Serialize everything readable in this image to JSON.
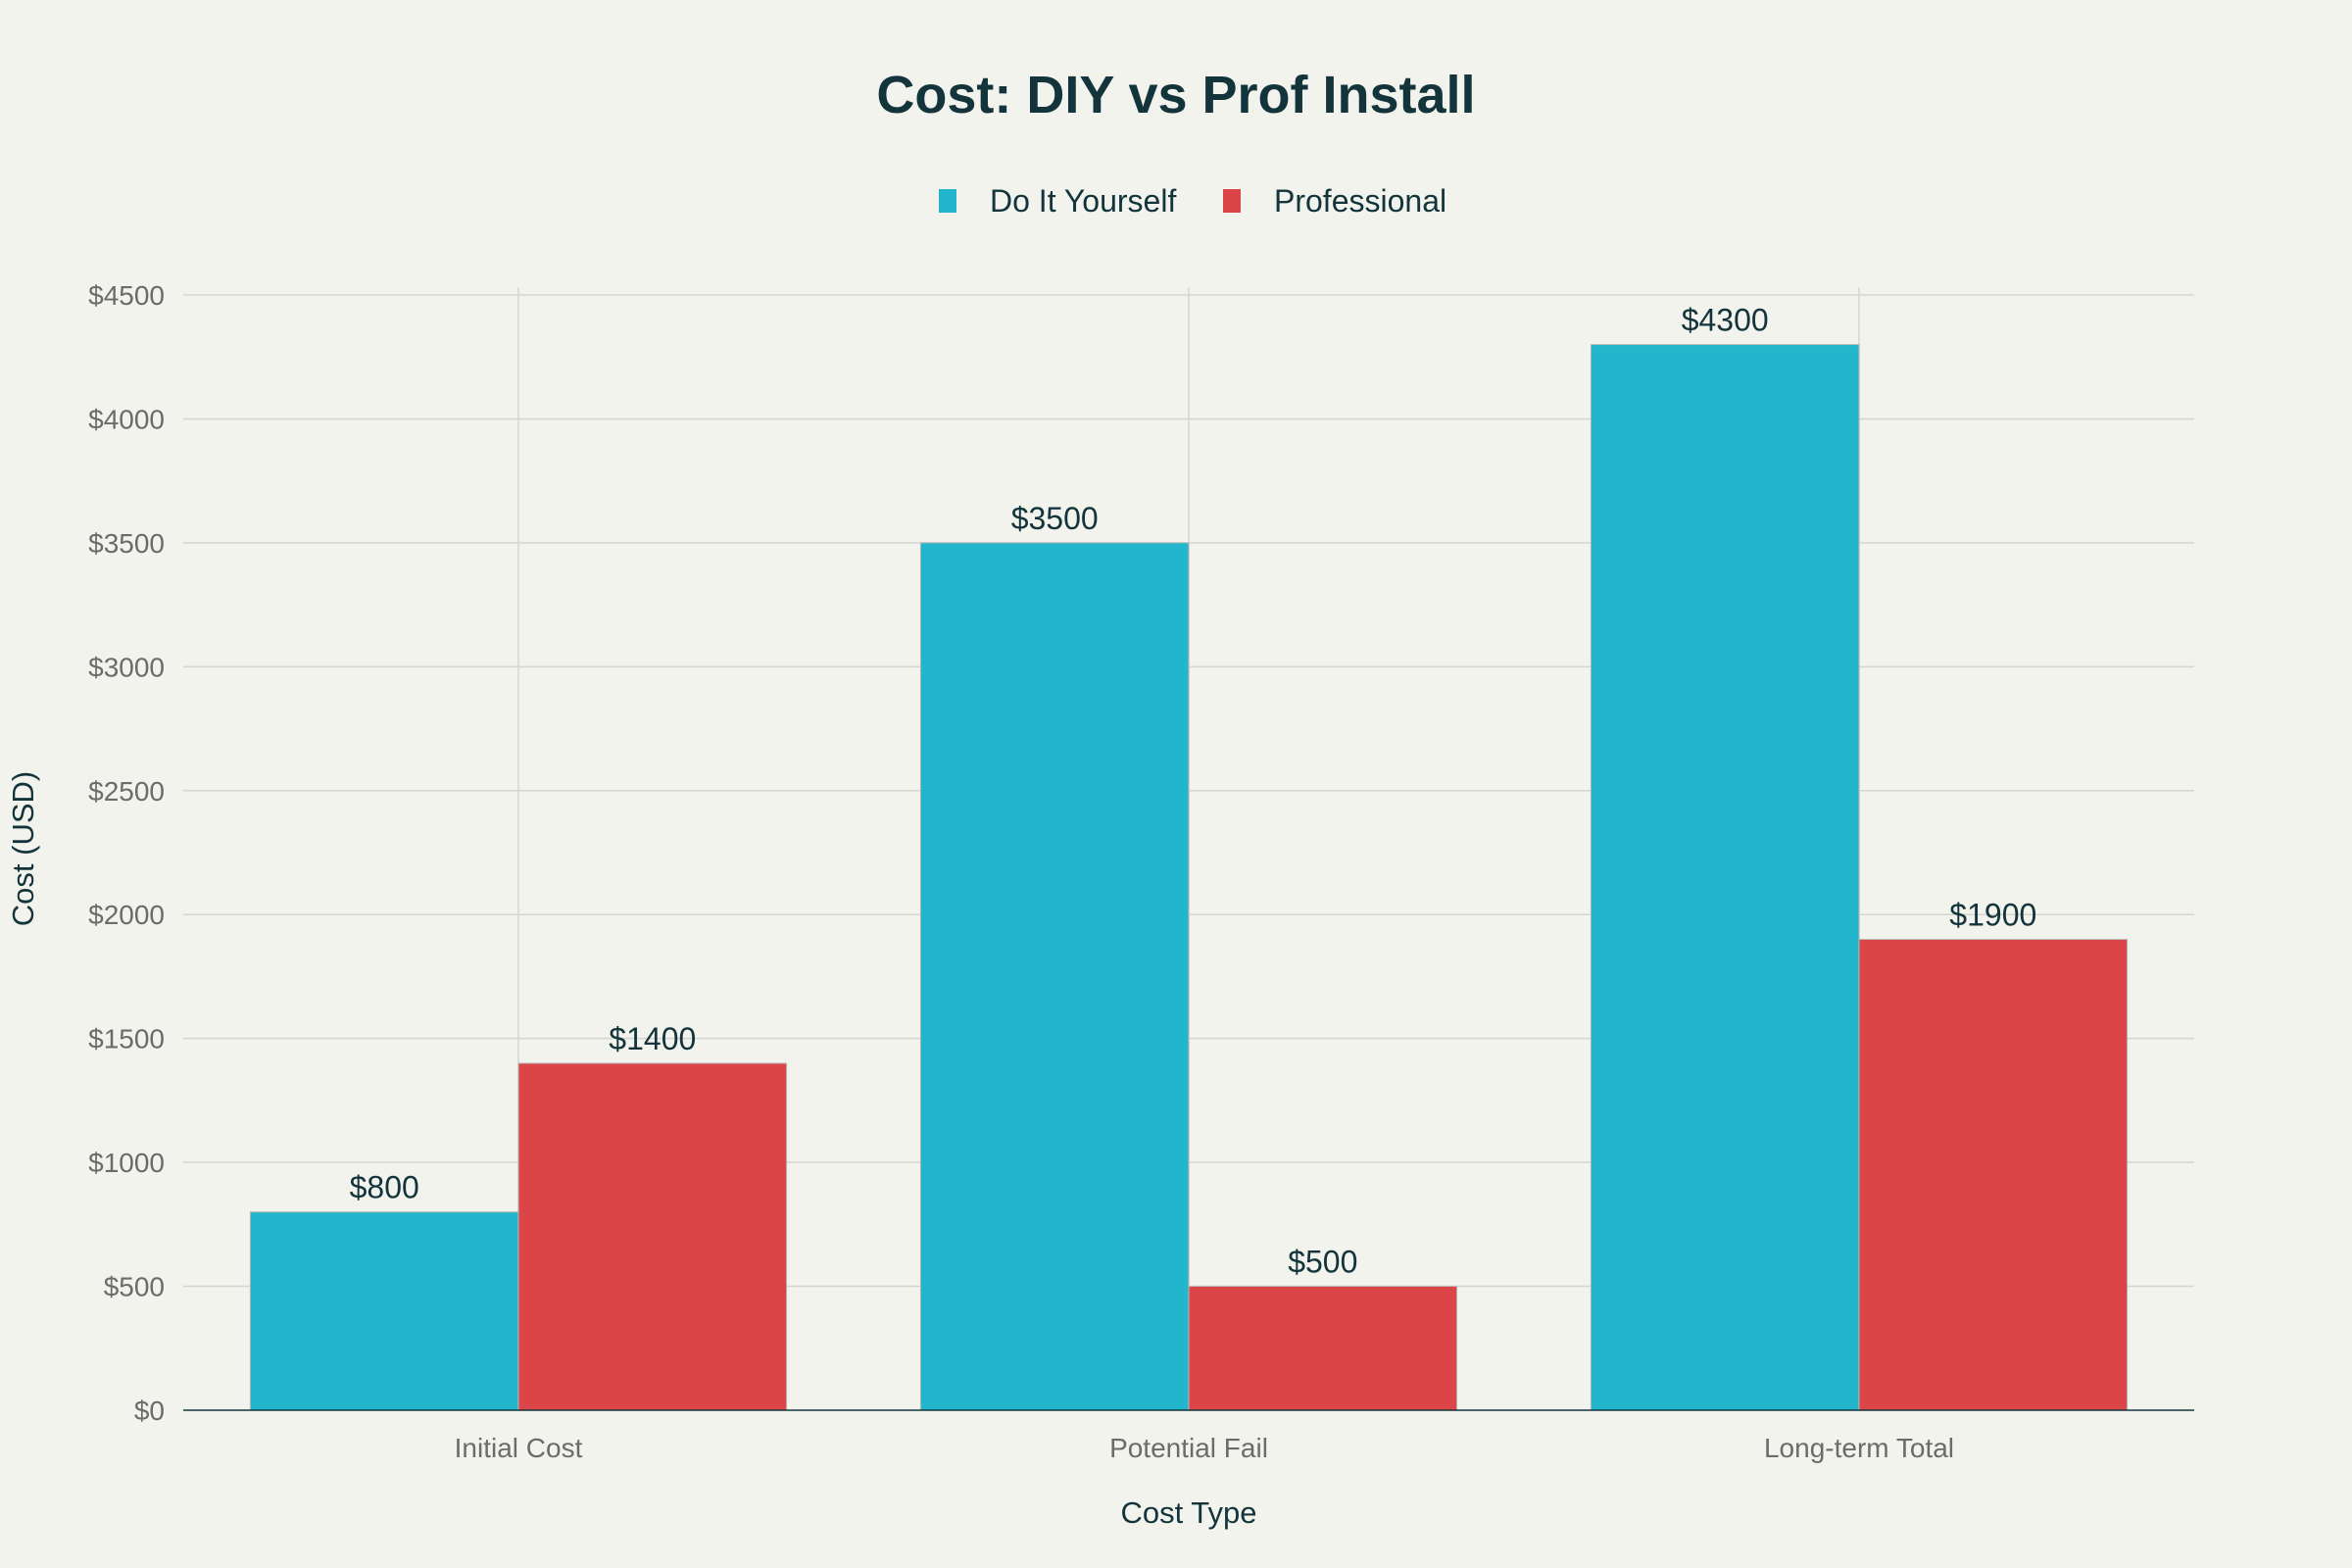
{
  "chart_data": {
    "type": "bar",
    "title": "Cost: DIY vs Prof Install",
    "xlabel": "Cost Type",
    "ylabel": "Cost (USD)",
    "categories": [
      "Initial Cost",
      "Potential Fail",
      "Long-term Total"
    ],
    "series": [
      {
        "name": "Do It Yourself",
        "color": "#21b6cc",
        "values": [
          800,
          3500,
          4300
        ],
        "labels": [
          "$800",
          "$3500",
          "$4300"
        ]
      },
      {
        "name": "Professional",
        "color": "#db4548",
        "values": [
          1400,
          500,
          1900
        ],
        "labels": [
          "$1400",
          "$500",
          "$1900"
        ]
      }
    ],
    "ylim": [
      0,
      4500
    ],
    "yticks": [
      0,
      500,
      1000,
      1500,
      2000,
      2500,
      3000,
      3500,
      4000,
      4500
    ],
    "ytick_labels": [
      "$0",
      "$500",
      "$1000",
      "$1500",
      "$2000",
      "$2500",
      "$3000",
      "$3500",
      "$4000",
      "$4500"
    ],
    "grid": true,
    "legend": "top-center"
  }
}
